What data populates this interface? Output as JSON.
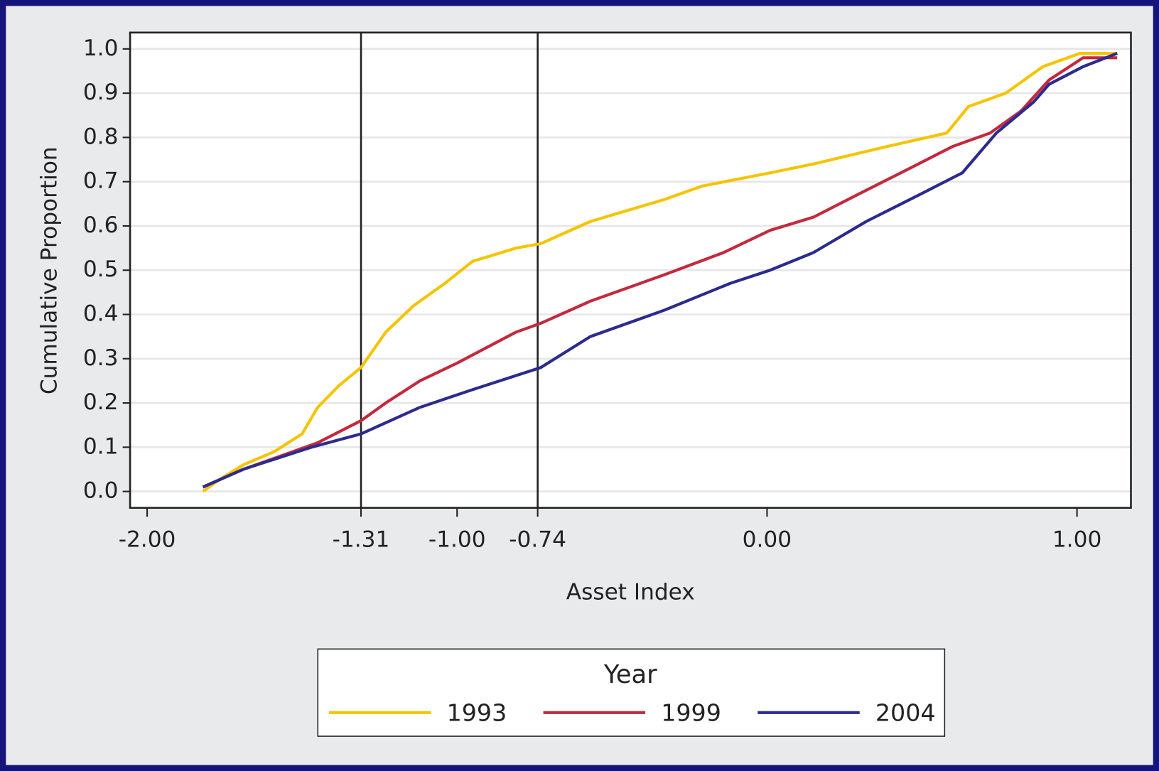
{
  "chart_data": {
    "type": "line",
    "x_label": "Asset Index",
    "y_label": "Cumulative Proportion",
    "legend_title": "Year",
    "legend_position": "bottom",
    "xlim": [
      -2.055,
      1.174
    ],
    "ylim": [
      -0.037,
      1.037
    ],
    "xticks": [
      {
        "value": -2.0,
        "label": "-2.00"
      },
      -1.31,
      {
        "value": -1.0,
        "label": "-1.00"
      },
      -0.74,
      {
        "value": 0,
        "label": "0.00"
      },
      {
        "value": 1.0,
        "label": "1.00"
      }
    ],
    "yticks": [
      {
        "value": 0,
        "label": "0.0"
      },
      0.1,
      0.2,
      0.3,
      0.4,
      0.5,
      0.6,
      0.7,
      0.8,
      0.9,
      {
        "value": 1.0,
        "label": "1.0"
      }
    ],
    "xlines": [
      -1.31,
      -0.74
    ],
    "grid": true,
    "series": [
      {
        "name": "1993",
        "color": "#f5c400",
        "x": [
          -1.82,
          -1.76,
          -1.69,
          -1.59,
          -1.5,
          -1.45,
          -1.38,
          -1.31,
          -1.23,
          -1.14,
          -1.04,
          -0.95,
          -0.81,
          -0.73,
          -0.57,
          -0.33,
          -0.21,
          0.01,
          0.15,
          0.39,
          0.58,
          0.65,
          0.77,
          0.89,
          1.01,
          1.13
        ],
        "values": [
          0.0,
          0.03,
          0.06,
          0.09,
          0.13,
          0.19,
          0.24,
          0.28,
          0.36,
          0.42,
          0.47,
          0.52,
          0.55,
          0.56,
          0.61,
          0.66,
          0.69,
          0.72,
          0.74,
          0.78,
          0.81,
          0.87,
          0.9,
          0.96,
          0.99,
          0.99
        ]
      },
      {
        "name": "1999",
        "color": "#c22a3e",
        "x": [
          -1.82,
          -1.69,
          -1.57,
          -1.45,
          -1.31,
          -1.23,
          -1.12,
          -1.0,
          -0.81,
          -0.73,
          -0.57,
          -0.33,
          -0.14,
          0.01,
          0.15,
          0.29,
          0.46,
          0.6,
          0.72,
          0.82,
          0.91,
          1.02,
          1.13
        ],
        "values": [
          0.01,
          0.05,
          0.08,
          0.11,
          0.16,
          0.2,
          0.25,
          0.29,
          0.36,
          0.38,
          0.43,
          0.49,
          0.54,
          0.59,
          0.62,
          0.67,
          0.73,
          0.78,
          0.81,
          0.86,
          0.93,
          0.98,
          0.98
        ]
      },
      {
        "name": "2004",
        "color": "#2b2b8e",
        "x": [
          -1.82,
          -1.69,
          -1.47,
          -1.31,
          -1.12,
          -0.95,
          -0.73,
          -0.57,
          -0.33,
          -0.12,
          0.01,
          0.15,
          0.32,
          0.49,
          0.63,
          0.74,
          0.86,
          0.91,
          1.02,
          1.13
        ],
        "values": [
          0.01,
          0.05,
          0.1,
          0.13,
          0.19,
          0.23,
          0.28,
          0.35,
          0.41,
          0.47,
          0.5,
          0.54,
          0.61,
          0.67,
          0.72,
          0.81,
          0.88,
          0.92,
          0.96,
          0.99
        ]
      }
    ]
  }
}
